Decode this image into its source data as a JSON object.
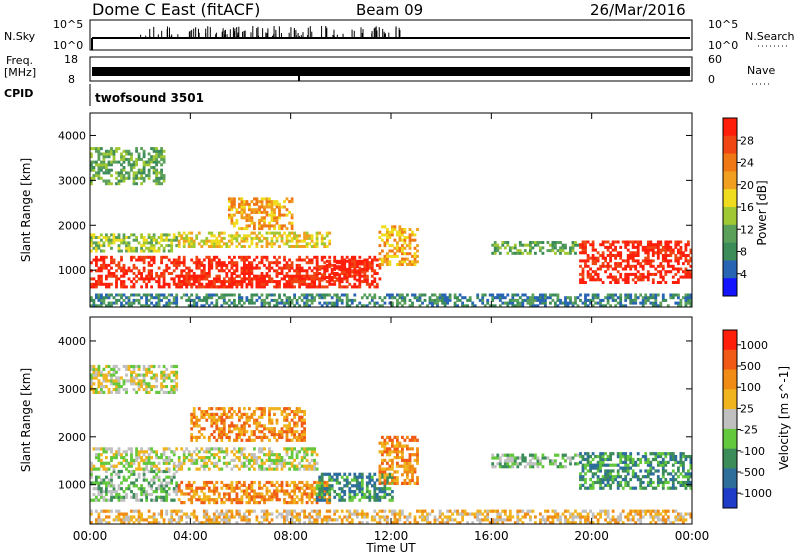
{
  "header": {
    "station": "Dome C East (fitACF)",
    "beam": "Beam 09",
    "date": "26/Mar/2016"
  },
  "top_panels": {
    "nsky_label": "N.Sky",
    "nsky_ticks": [
      "10^5",
      "10^0"
    ],
    "nsearch_label": "N.Search",
    "nsearch_ticks": [
      "10^5",
      "10^0"
    ],
    "freq_label_line1": "Freq.",
    "freq_label_line2": "[MHz]",
    "freq_ticks": [
      "18",
      "8"
    ],
    "nave_label": "Nave",
    "nave_ticks": [
      "60",
      "0"
    ],
    "cpid_label": "CPID",
    "cpid_value": "twofsound 3501"
  },
  "chart_data": [
    {
      "type": "heatmap",
      "name": "power_panel",
      "ylabel": "Slant Range [km]",
      "xlabel": "",
      "xlim": [
        0,
        24
      ],
      "ylim": [
        180,
        4500
      ],
      "y_ticks": [
        1000,
        2000,
        3000,
        4000
      ],
      "x_ticks": [
        0,
        4,
        8,
        12,
        16,
        20,
        24
      ],
      "colorbar": {
        "label": "Power [dB]",
        "ticks": [
          "4",
          "8",
          "12",
          "16",
          "20",
          "24",
          "28"
        ],
        "colors": [
          "#1414ff",
          "#2864b4",
          "#3c8c5a",
          "#5aa05a",
          "#a0c832",
          "#f0dc1e",
          "#f0a01e",
          "#f07814",
          "#f04614",
          "#ff1e0a"
        ]
      },
      "regions": [
        {
          "t0": 0.0,
          "t1": 11.5,
          "r0": 600,
          "r1": 1300,
          "level": 9
        },
        {
          "t0": 3.5,
          "t1": 9.0,
          "r0": 600,
          "r1": 900,
          "level": 9
        },
        {
          "t0": 9.0,
          "t1": 11.0,
          "r0": 750,
          "r1": 1200,
          "level": 9
        },
        {
          "t0": 0.0,
          "t1": 3.5,
          "r0": 1400,
          "r1": 1800,
          "level": 4
        },
        {
          "t0": 3.5,
          "t1": 9.5,
          "r0": 1500,
          "r1": 1850,
          "level": 5
        },
        {
          "t0": 5.5,
          "t1": 8.0,
          "r0": 1900,
          "r1": 2600,
          "level": 6
        },
        {
          "t0": 0.0,
          "t1": 3.0,
          "r0": 2900,
          "r1": 3700,
          "level": 3
        },
        {
          "t0": 11.5,
          "t1": 13.0,
          "r0": 1100,
          "r1": 2000,
          "level": 6
        },
        {
          "t0": 16.0,
          "t1": 19.5,
          "r0": 1350,
          "r1": 1650,
          "level": 3
        },
        {
          "t0": 19.5,
          "t1": 24.0,
          "r0": 700,
          "r1": 1650,
          "level": 9
        },
        {
          "t0": 0.0,
          "t1": 24.0,
          "r0": 180,
          "r1": 450,
          "level": 2
        }
      ]
    },
    {
      "type": "heatmap",
      "name": "velocity_panel",
      "ylabel": "Slant Range [km]",
      "xlabel": "Time UT",
      "xlim": [
        0,
        24
      ],
      "ylim": [
        180,
        4500
      ],
      "y_ticks": [
        1000,
        2000,
        3000,
        4000
      ],
      "x_ticks": [
        0,
        4,
        8,
        12,
        16,
        20,
        24
      ],
      "x_tick_labels": [
        "00:00",
        "04:00",
        "08:00",
        "12:00",
        "16:00",
        "20:00",
        "00:00"
      ],
      "colorbar": {
        "label": "Velocity [m s^-1]",
        "ticks": [
          "1000",
          "500",
          "100",
          "25",
          "-25",
          "-100",
          "-500",
          "-1000"
        ],
        "colors": [
          "#1e3cc8",
          "#2d6e9a",
          "#3c8c5a",
          "#64c83c",
          "#c0c0c0",
          "#f0b41e",
          "#f08c14",
          "#f05a14",
          "#ff1e0a"
        ]
      },
      "regions": [
        {
          "t0": 0.0,
          "t1": 3.5,
          "r0": 650,
          "r1": 1300,
          "level": 3
        },
        {
          "t0": 0.0,
          "t1": 9.0,
          "r0": 1300,
          "r1": 1750,
          "level": 4
        },
        {
          "t0": 3.5,
          "t1": 9.5,
          "r0": 600,
          "r1": 1050,
          "level": 6
        },
        {
          "t0": 9.0,
          "t1": 12.0,
          "r0": 650,
          "r1": 1250,
          "level": 2
        },
        {
          "t0": 4.0,
          "t1": 8.5,
          "r0": 1900,
          "r1": 2600,
          "level": 6
        },
        {
          "t0": 0.0,
          "t1": 3.5,
          "r0": 2900,
          "r1": 3500,
          "level": 4
        },
        {
          "t0": 11.5,
          "t1": 13.0,
          "r0": 1000,
          "r1": 2000,
          "level": 6
        },
        {
          "t0": 16.0,
          "t1": 19.5,
          "r0": 1350,
          "r1": 1650,
          "level": 3
        },
        {
          "t0": 19.5,
          "t1": 24.0,
          "r0": 900,
          "r1": 1650,
          "level": 2
        },
        {
          "t0": 0.0,
          "t1": 24.0,
          "r0": 180,
          "r1": 450,
          "level": 5
        }
      ]
    }
  ]
}
